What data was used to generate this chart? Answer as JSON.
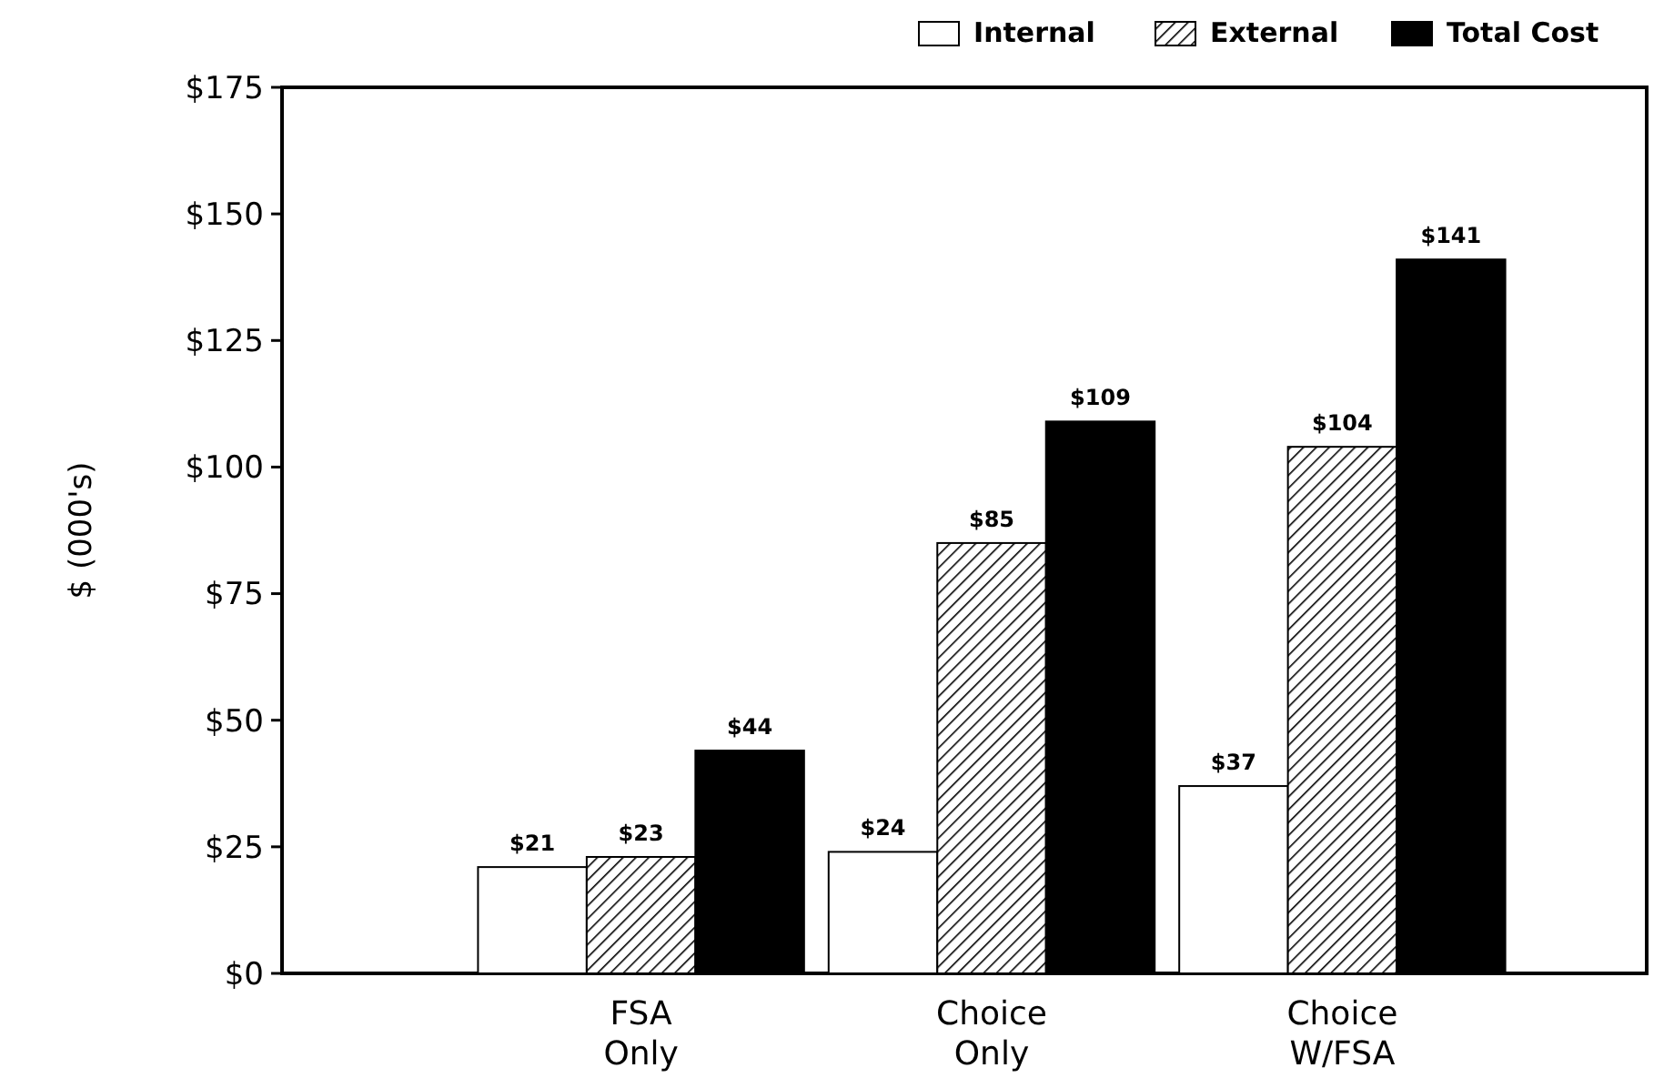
{
  "chart_data": {
    "type": "bar",
    "ylabel": "$ (000's)",
    "categories": [
      "FSA\nOnly",
      "Choice\nOnly",
      "Choice\nW/FSA"
    ],
    "series": [
      {
        "name": "Internal",
        "color": "#ffffff",
        "values": [
          21,
          24,
          37
        ],
        "value_labels": [
          "$21",
          "$24",
          "$37"
        ]
      },
      {
        "name": "External",
        "color": "#000000",
        "values": [
          23,
          85,
          104
        ],
        "value_labels": [
          "$23",
          "$85",
          "$104"
        ]
      },
      {
        "name": "Total Cost",
        "color": "#000000",
        "values": [
          44,
          109,
          141
        ],
        "value_labels": [
          "$44",
          "$109",
          "$141"
        ]
      }
    ],
    "ylim": [
      0,
      175
    ],
    "yticks": [
      {
        "value": 0,
        "label": "$0"
      },
      {
        "value": 25,
        "label": "$25"
      },
      {
        "value": 50,
        "label": "$50"
      },
      {
        "value": 75,
        "label": "$75"
      },
      {
        "value": 100,
        "label": "$100"
      },
      {
        "value": 125,
        "label": "$125"
      },
      {
        "value": 150,
        "label": "$150"
      },
      {
        "value": 175,
        "label": "$175"
      }
    ],
    "grid": false,
    "legend": "top right"
  }
}
